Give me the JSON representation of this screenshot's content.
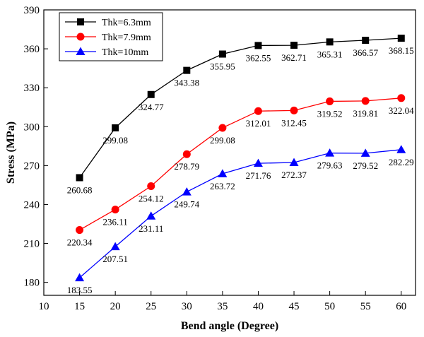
{
  "chart_data": {
    "type": "line",
    "title": "",
    "xlabel": "Bend angle (Degree)",
    "ylabel": "Stress (MPa)",
    "xlim": [
      10,
      62
    ],
    "ylim": [
      170,
      390
    ],
    "xticks": [
      10,
      15,
      20,
      25,
      30,
      35,
      40,
      45,
      50,
      55,
      60
    ],
    "yticks": [
      180,
      210,
      240,
      270,
      300,
      330,
      360,
      390
    ],
    "grid": false,
    "legend_position": "top-left",
    "x": [
      15,
      20,
      25,
      30,
      35,
      40,
      45,
      50,
      55,
      60
    ],
    "series": [
      {
        "name": "Thk=6.3mm",
        "color": "#000000",
        "marker": "square",
        "values": [
          260.68,
          299.08,
          324.77,
          343.38,
          355.95,
          362.55,
          362.71,
          365.31,
          366.57,
          368.15
        ],
        "labels": [
          "260.68",
          "299.08",
          "324.77",
          "343.38",
          "355.95",
          "362.55",
          "362.71",
          "365.31",
          "366.57",
          "368.15"
        ]
      },
      {
        "name": "Thk=7.9mm",
        "color": "#ff0000",
        "marker": "circle",
        "values": [
          220.34,
          236.11,
          254.12,
          278.79,
          299.08,
          312.01,
          312.45,
          319.52,
          319.81,
          322.04
        ],
        "labels": [
          "220.34",
          "236.11",
          "254.12",
          "278.79",
          "299.08",
          "312.01",
          "312.45",
          "319.52",
          "319.81",
          "322.04"
        ]
      },
      {
        "name": "Thk=10mm",
        "color": "#0000ff",
        "marker": "triangle",
        "values": [
          183.55,
          207.51,
          231.11,
          249.74,
          263.72,
          271.76,
          272.37,
          279.63,
          279.52,
          282.29
        ],
        "labels": [
          "183.55",
          "207.51",
          "231.11",
          "249.74",
          "263.72",
          "271.76",
          "272.37",
          "279.63",
          "279.52",
          "282.29"
        ]
      }
    ]
  }
}
